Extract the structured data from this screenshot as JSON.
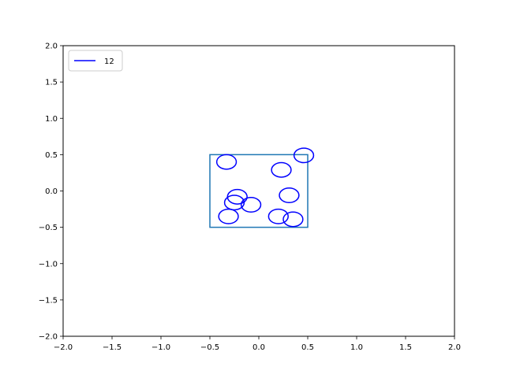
{
  "chart_data": {
    "type": "scatter",
    "title": "",
    "xlabel": "",
    "ylabel": "",
    "xlim": [
      -2.0,
      2.0
    ],
    "ylim": [
      -2.0,
      2.0
    ],
    "xticks": [
      "−2.0",
      "−1.5",
      "−1.0",
      "−0.5",
      "0.0",
      "0.5",
      "1.0",
      "1.5",
      "2.0"
    ],
    "yticks": [
      "−2.0",
      "−1.5",
      "−1.0",
      "−0.5",
      "0.0",
      "0.5",
      "1.0",
      "1.5",
      "2.0"
    ],
    "xtick_values": [
      -2.0,
      -1.5,
      -1.0,
      -0.5,
      0.0,
      0.5,
      1.0,
      1.5,
      2.0
    ],
    "ytick_values": [
      -2.0,
      -1.5,
      -1.0,
      -0.5,
      0.0,
      0.5,
      1.0,
      1.5,
      2.0
    ],
    "grid": false,
    "legend_position": "upper-left",
    "legend": [
      {
        "label": "12",
        "color": "#0000ff"
      }
    ],
    "box": {
      "x0": -0.5,
      "y0": -0.5,
      "x1": 0.5,
      "y1": 0.5,
      "color": "#1f77b4"
    },
    "circles": {
      "color": "#0000ff",
      "radius": 0.1,
      "centers": [
        {
          "x": -0.33,
          "y": 0.4
        },
        {
          "x": 0.46,
          "y": 0.49
        },
        {
          "x": 0.23,
          "y": 0.29
        },
        {
          "x": -0.22,
          "y": -0.08
        },
        {
          "x": -0.25,
          "y": -0.16
        },
        {
          "x": -0.08,
          "y": -0.19
        },
        {
          "x": 0.31,
          "y": -0.06
        },
        {
          "x": -0.31,
          "y": -0.35
        },
        {
          "x": 0.2,
          "y": -0.35
        },
        {
          "x": 0.35,
          "y": -0.39
        }
      ]
    }
  }
}
